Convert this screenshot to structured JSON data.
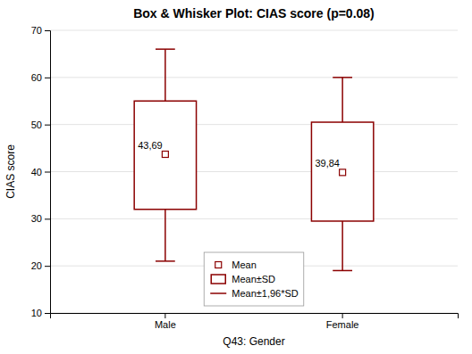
{
  "chart_data": {
    "type": "box",
    "title": "Box & Whisker Plot: CIAS score (p=0.08)",
    "xlabel": "Q43: Gender",
    "ylabel": "CIAS score",
    "categories": [
      "Male",
      "Female"
    ],
    "values": [
      43.69,
      39.84
    ],
    "value_labels": [
      "43,69",
      "39,84"
    ],
    "data_labels": true,
    "sd_lower": [
      32.0,
      29.5
    ],
    "sd_upper": [
      55.0,
      50.5
    ],
    "whisker_lower": [
      21.0,
      19.0
    ],
    "whisker_upper": [
      66.0,
      60.0
    ],
    "color": "#8B0000",
    "legend_entries": [
      "Mean",
      "Mean±SD",
      "Mean±1,96*SD"
    ],
    "legend": "lower center",
    "ylim": [
      10,
      70
    ],
    "yticks": [
      10,
      20,
      30,
      40,
      50,
      60,
      70
    ],
    "grid": true
  }
}
